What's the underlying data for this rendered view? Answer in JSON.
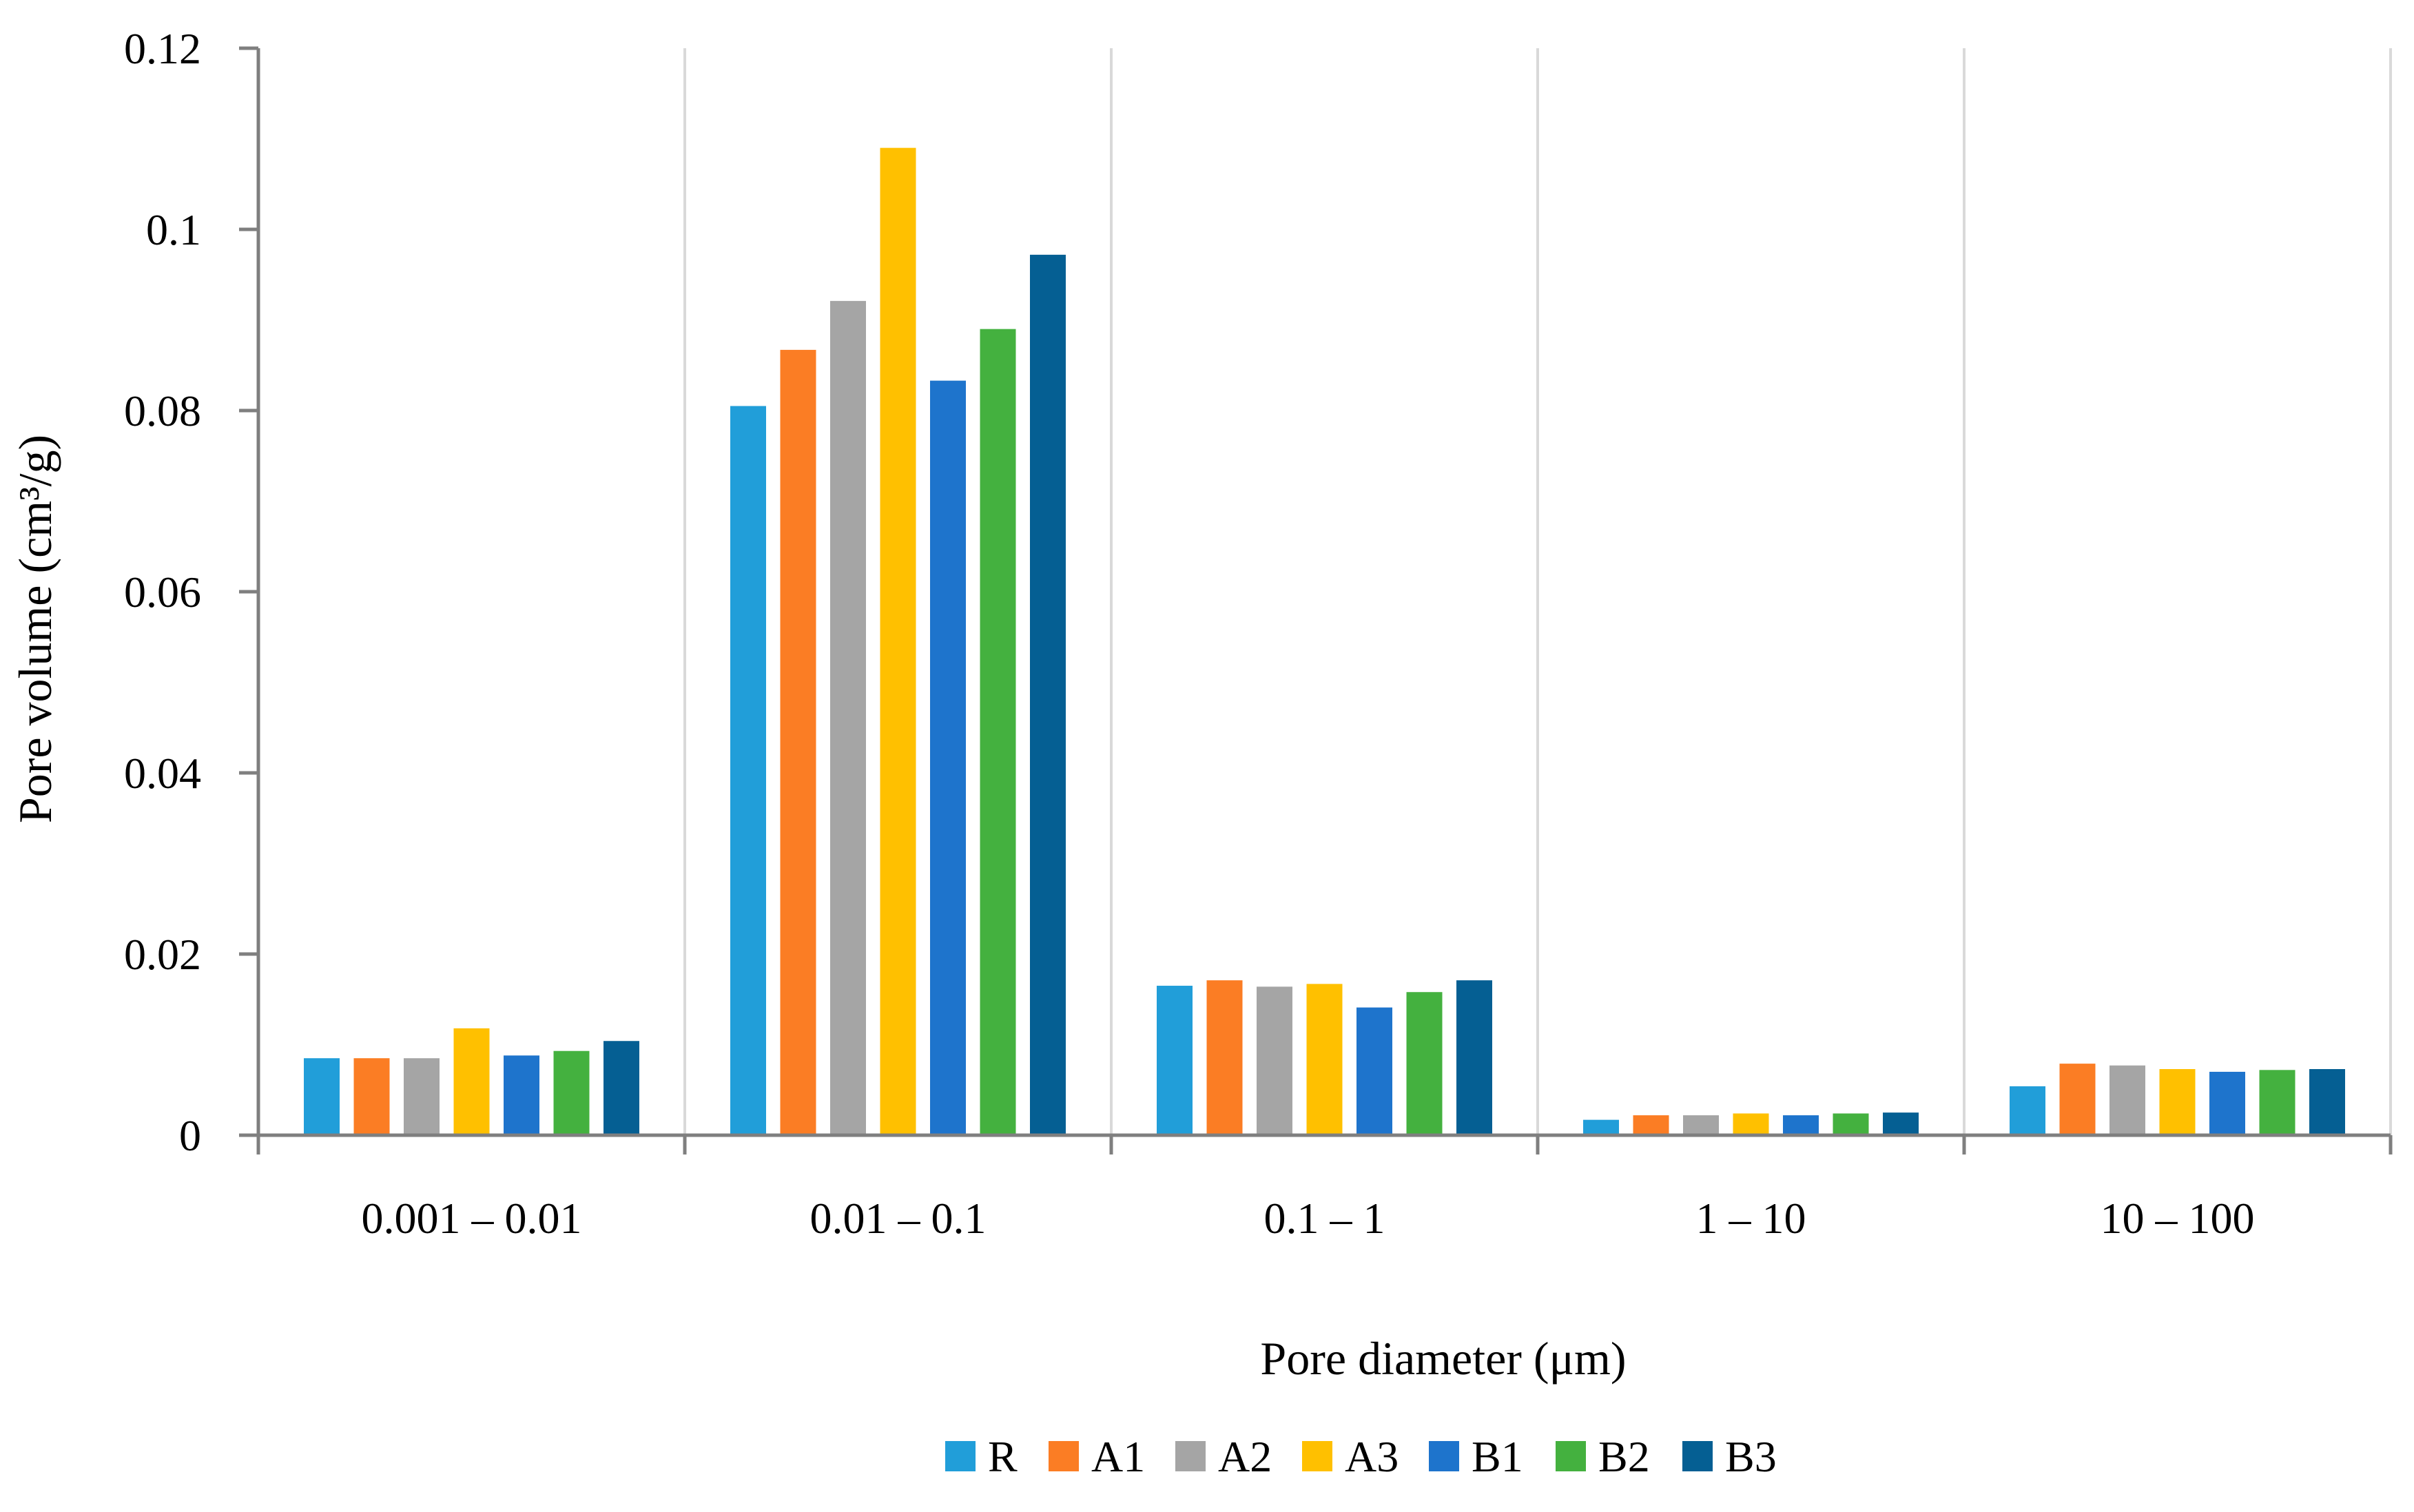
{
  "chart_data": {
    "type": "bar",
    "title": "",
    "xlabel": "Pore diameter (μm)",
    "ylabel": "Pore volume (cm³/g)",
    "ylim": [
      0,
      0.12
    ],
    "y_ticks": [
      0,
      0.02,
      0.04,
      0.06,
      0.08,
      0.1,
      0.12
    ],
    "y_tick_labels": [
      "0",
      "0.02",
      "0.04",
      "0.06",
      "0.08",
      "0.1",
      "0.12"
    ],
    "grid": "vertical category separators",
    "legend_position": "bottom",
    "categories": [
      "0.001 – 0.01",
      "0.01 – 0.1",
      "0.1 – 1",
      "1 – 10",
      "10 – 100"
    ],
    "series": [
      {
        "name": "R",
        "color": "#219ED9",
        "values": [
          0.0085,
          0.0805,
          0.0165,
          0.0017,
          0.0054
        ]
      },
      {
        "name": "A1",
        "color": "#FB7D24",
        "values": [
          0.0085,
          0.0867,
          0.0171,
          0.0022,
          0.0079
        ]
      },
      {
        "name": "A2",
        "color": "#A5A5A5",
        "values": [
          0.0085,
          0.0921,
          0.0164,
          0.0022,
          0.0077
        ]
      },
      {
        "name": "A3",
        "color": "#FFC000",
        "values": [
          0.0118,
          0.109,
          0.0167,
          0.0024,
          0.0073
        ]
      },
      {
        "name": "B1",
        "color": "#1E74CC",
        "values": [
          0.0088,
          0.0833,
          0.0141,
          0.0022,
          0.007
        ]
      },
      {
        "name": "B2",
        "color": "#44B13F",
        "values": [
          0.0093,
          0.089,
          0.0158,
          0.0024,
          0.0072
        ]
      },
      {
        "name": "B3",
        "color": "#055F93",
        "values": [
          0.0104,
          0.0972,
          0.0171,
          0.0025,
          0.0073
        ]
      }
    ]
  }
}
